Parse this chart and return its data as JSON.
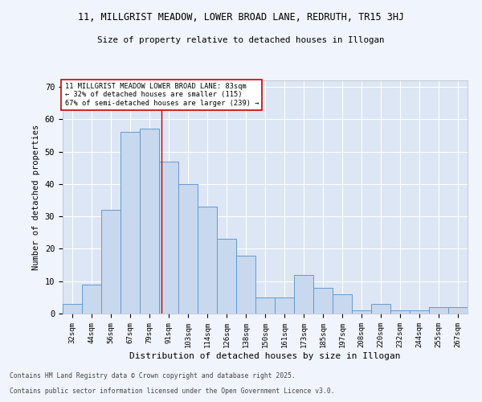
{
  "title1": "11, MILLGRIST MEADOW, LOWER BROAD LANE, REDRUTH, TR15 3HJ",
  "title2": "Size of property relative to detached houses in Illogan",
  "xlabel": "Distribution of detached houses by size in Illogan",
  "ylabel": "Number of detached properties",
  "categories": [
    "32sqm",
    "44sqm",
    "56sqm",
    "67sqm",
    "79sqm",
    "91sqm",
    "103sqm",
    "114sqm",
    "126sqm",
    "138sqm",
    "150sqm",
    "161sqm",
    "173sqm",
    "185sqm",
    "197sqm",
    "208sqm",
    "220sqm",
    "232sqm",
    "244sqm",
    "255sqm",
    "267sqm"
  ],
  "values": [
    3,
    9,
    32,
    56,
    57,
    47,
    40,
    33,
    23,
    18,
    5,
    5,
    12,
    8,
    6,
    1,
    3,
    1,
    1,
    2,
    2
  ],
  "bar_color": "#c8d8ee",
  "bar_edge_color": "#6699cc",
  "background_color": "#dce6f5",
  "grid_color": "#ffffff",
  "annotation_box_text": "11 MILLGRIST MEADOW LOWER BROAD LANE: 83sqm\n← 32% of detached houses are smaller (115)\n67% of semi-detached houses are larger (239) →",
  "annotation_box_color": "#ffffff",
  "annotation_box_edge_color": "#cc0000",
  "red_line_x": 4.62,
  "ylim": [
    0,
    72
  ],
  "yticks": [
    0,
    10,
    20,
    30,
    40,
    50,
    60,
    70
  ],
  "footer1": "Contains HM Land Registry data © Crown copyright and database right 2025.",
  "footer2": "Contains public sector information licensed under the Open Government Licence v3.0.",
  "fig_bg": "#f0f4fc"
}
